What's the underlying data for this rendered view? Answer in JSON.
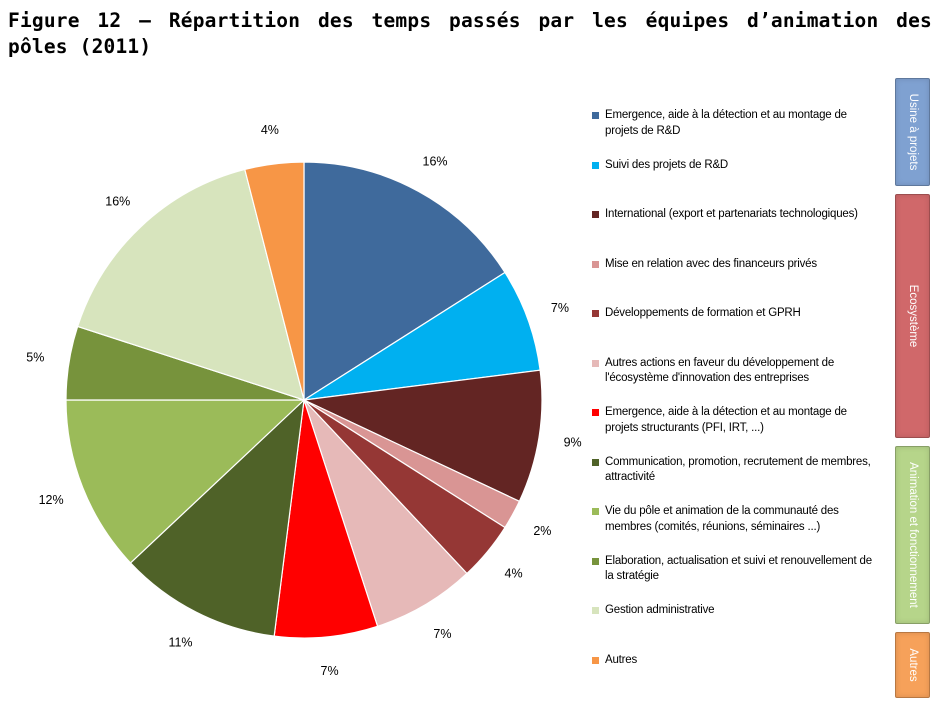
{
  "title": "Figure 12 – Répartition des temps passés par les équipes d’animation des pôles (2011)",
  "chart_data": {
    "type": "pie",
    "start": "top, clockwise",
    "slices": [
      {
        "label": "Emergence, aide à la détection et au montage de projets de R&D",
        "value": 16,
        "pct": "16%",
        "color": "#3F6A9C"
      },
      {
        "label": "Suivi des projets de R&D",
        "value": 7,
        "pct": "7%",
        "color": "#00B0F0"
      },
      {
        "label": "International (export et partenariats technologiques)",
        "value": 9,
        "pct": "9%",
        "color": "#632523"
      },
      {
        "label": "Mise en relation avec des financeurs privés",
        "value": 2,
        "pct": "2%",
        "color": "#D99594"
      },
      {
        "label": "Développements de formation et GPRH",
        "value": 4,
        "pct": "4%",
        "color": "#953735"
      },
      {
        "label": "Autres actions en faveur du développement de l'écosystème d'innovation des entreprises",
        "value": 7,
        "pct": "7%",
        "color": "#E6B9B8"
      },
      {
        "label": "Emergence, aide à la détection et au montage de projets structurants (PFI, IRT, ...)",
        "value": 7,
        "pct": "7%",
        "color": "#FF0000"
      },
      {
        "label": "Communication, promotion, recrutement de membres, attractivité",
        "value": 11,
        "pct": "11%",
        "color": "#4F6228"
      },
      {
        "label": "Vie du pôle et animation de la communauté des membres (comités, réunions, séminaires ...)",
        "value": 12,
        "pct": "12%",
        "color": "#9BBB59"
      },
      {
        "label": "Elaboration, actualisation et suivi et renouvellement de la stratégie",
        "value": 5,
        "pct": "5%",
        "color": "#77933C"
      },
      {
        "label": "Gestion administrative",
        "value": 16,
        "pct": "16%",
        "color": "#D7E4BD"
      },
      {
        "label": "Autres",
        "value": 4,
        "pct": "4%",
        "color": "#F79646"
      }
    ],
    "legend_position": "right"
  },
  "legend": [
    {
      "lines": [
        "Emergence, aide à la détection et au montage de",
        "projets de R&D"
      ],
      "color": "#3F6A9C"
    },
    {
      "lines": [
        "Suivi des projets de R&D"
      ],
      "color": "#00B0F0"
    },
    {
      "lines": [
        "International (export et partenariats technologiques)"
      ],
      "color": "#632523"
    },
    {
      "lines": [
        "Mise en relation avec des financeurs privés"
      ],
      "color": "#D99594"
    },
    {
      "lines": [
        "Développements de formation et GPRH"
      ],
      "color": "#953735"
    },
    {
      "lines": [
        "Autres actions en faveur du développement de",
        "l'écosystème d'innovation des entreprises"
      ],
      "color": "#E6B9B8"
    },
    {
      "lines": [
        "Emergence, aide à la détection et au montage de",
        "projets structurants (PFI, IRT, ...)"
      ],
      "color": "#FF0000"
    },
    {
      "lines": [
        "Communication, promotion, recrutement de membres,",
        "attractivité"
      ],
      "color": "#4F6228"
    },
    {
      "lines": [
        "Vie du pôle et animation de la communauté des",
        "membres (comités, réunions, séminaires ...)"
      ],
      "color": "#9BBB59"
    },
    {
      "lines": [
        "Elaboration, actualisation et suivi et renouvellement de",
        "la stratégie"
      ],
      "color": "#77933C"
    },
    {
      "lines": [
        "Gestion administrative"
      ],
      "color": "#D7E4BD"
    },
    {
      "lines": [
        "Autres"
      ],
      "color": "#F79646"
    }
  ],
  "groups": [
    {
      "label": "Usine à projets",
      "color": "#7FA1D1"
    },
    {
      "label": "Ecosystème",
      "color": "#D0686A"
    },
    {
      "label": "Animation et fonctionnement",
      "color": "#B6D58A"
    },
    {
      "label": "Autres",
      "color": "#F6A15A"
    }
  ]
}
